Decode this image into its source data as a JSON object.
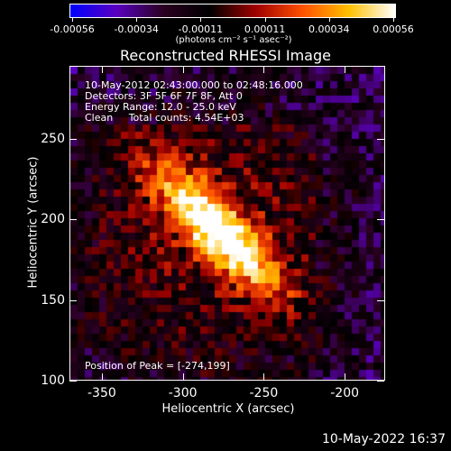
{
  "colorbar": {
    "tick_labels": [
      "-0.00056",
      "-0.00034",
      "-0.00011",
      "0.00011",
      "0.00034",
      "0.00056"
    ],
    "units": "(photons cm⁻² s⁻¹ asec⁻²)",
    "colors": [
      "#0000ff",
      "#5a00c0",
      "#2a0020",
      "#000000",
      "#a00000",
      "#ff5000",
      "#ffc000",
      "#ffffff"
    ]
  },
  "title": "Reconstructed RHESSI Image",
  "info": {
    "time_range": "10-May-2012 02:43:00.000 to 02:48:16.000",
    "detectors": "Detectors: 3F 5F 6F 7F 8F, Att 0",
    "energy": "Energy Range: 12.0 - 25.0 keV",
    "clean": "Clean     Total counts: 4.54E+03"
  },
  "peak": "Position of Peak = [-274,199]",
  "axes": {
    "xlabel": "Heliocentric X (arcsec)",
    "ylabel": "Heliocentric Y (arcsec)",
    "xticks": [
      "-350",
      "-300",
      "-250",
      "-200"
    ],
    "yticks": [
      "250",
      "200",
      "150",
      "100"
    ],
    "xlim": [
      -370,
      -175
    ],
    "ylim": [
      100,
      295
    ]
  },
  "timestamp": "10-May-2022 16:37"
}
